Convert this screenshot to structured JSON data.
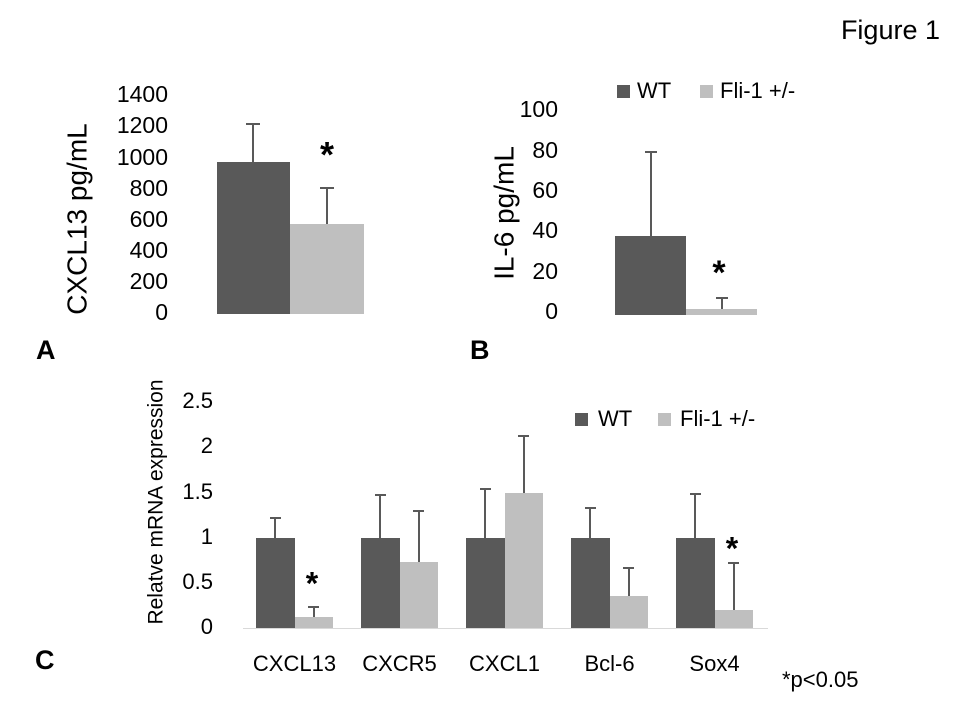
{
  "figure_title": "Figure 1",
  "footnote": "*p<0.05",
  "colors": {
    "wt_bar": "#595959",
    "fli_bar": "#bfbfbf",
    "error_bar": "#595959",
    "axis_line": "#d9d9d9",
    "text": "#000000",
    "background": "#ffffff"
  },
  "legend": {
    "wt_label": "WT",
    "fli_label": "Fli-1 +/-"
  },
  "chart_data": [
    {
      "panel": "A",
      "panel_label": "A",
      "type": "bar",
      "title": "",
      "xlabel": "",
      "ylabel": "CXCL13 pg/mL",
      "ylim": [
        0,
        1400
      ],
      "yticks": [
        0,
        200,
        400,
        600,
        800,
        1000,
        1200,
        1400
      ],
      "grid": false,
      "categories": [
        ""
      ],
      "series": [
        {
          "name": "WT",
          "color": "#595959",
          "values": [
            975
          ],
          "errors_up": [
            250
          ]
        },
        {
          "name": "Fli-1 +/-",
          "color": "#bfbfbf",
          "values": [
            575
          ],
          "errors_up": [
            240
          ]
        }
      ],
      "significance": [
        {
          "series": "Fli-1 +/-",
          "category": "",
          "marker": "*"
        }
      ],
      "legend": false
    },
    {
      "panel": "B",
      "panel_label": "B",
      "type": "bar",
      "title": "",
      "xlabel": "",
      "ylabel": "IL-6 pg/mL",
      "ylim": [
        0,
        100
      ],
      "yticks": [
        0,
        20,
        40,
        60,
        80,
        100
      ],
      "grid": false,
      "categories": [
        ""
      ],
      "series": [
        {
          "name": "WT",
          "color": "#595959",
          "values": [
            39
          ],
          "errors_up": [
            42
          ]
        },
        {
          "name": "Fli-1 +/-",
          "color": "#bfbfbf",
          "values": [
            3
          ],
          "errors_up": [
            6
          ]
        }
      ],
      "significance": [
        {
          "series": "Fli-1 +/-",
          "category": "",
          "marker": "*"
        }
      ],
      "legend": true,
      "legend_position": "top"
    },
    {
      "panel": "C",
      "panel_label": "C",
      "type": "bar",
      "title": "",
      "xlabel": "",
      "ylabel": "Relatve mRNA expression",
      "ylim": [
        0,
        2.5
      ],
      "yticks": [
        0,
        0.5,
        1,
        1.5,
        2,
        2.5
      ],
      "grid": false,
      "categories": [
        "CXCL13",
        "CXCR5",
        "CXCL1",
        "Bcl-6",
        "Sox4"
      ],
      "series": [
        {
          "name": "WT",
          "color": "#595959",
          "values": [
            1.0,
            1.0,
            1.0,
            1.0,
            1.0
          ],
          "errors_up": [
            0.23,
            0.49,
            0.55,
            0.34,
            0.5
          ]
        },
        {
          "name": "Fli-1 +/-",
          "color": "#bfbfbf",
          "values": [
            0.12,
            0.73,
            1.5,
            0.36,
            0.2
          ],
          "errors_up": [
            0.12,
            0.58,
            0.64,
            0.32,
            0.53
          ]
        }
      ],
      "significance": [
        {
          "series": "Fli-1 +/-",
          "category": "CXCL13",
          "marker": "*"
        },
        {
          "series": "Fli-1 +/-",
          "category": "Sox4",
          "marker": "*"
        }
      ],
      "legend": true,
      "legend_position": "top-right"
    }
  ]
}
